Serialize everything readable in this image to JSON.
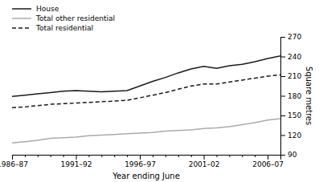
{
  "chart_data": {
    "type": "line",
    "xlabel": "Year ending June",
    "ylabel": "Square metres",
    "categories": [
      "1986–87",
      null,
      null,
      null,
      null,
      "1991–92",
      null,
      null,
      null,
      null,
      "1996–97",
      null,
      null,
      null,
      null,
      "2001–02",
      null,
      null,
      null,
      null,
      "2006–07",
      null
    ],
    "ylim": [
      90,
      270
    ],
    "yticks": [
      90,
      120,
      150,
      180,
      210,
      240,
      270
    ],
    "grid": false,
    "legend": "upper left",
    "series": [
      {
        "name": "House",
        "color": "#1a1a1a",
        "line_style": "solid",
        "values": [
          179,
          181,
          183,
          185,
          187,
          188,
          187,
          186,
          187,
          188,
          195,
          202,
          208,
          215,
          221,
          225,
          222,
          226,
          228,
          232,
          237,
          241
        ]
      },
      {
        "name": "Total other residential",
        "color": "#aaaaaa",
        "line_style": "solid",
        "values": [
          108,
          110,
          112,
          115,
          116,
          117,
          119,
          120,
          121,
          122,
          123,
          124,
          126,
          127,
          128,
          130,
          131,
          133,
          136,
          139,
          143,
          145
        ]
      },
      {
        "name": "Total residential",
        "color": "#1a1a1a",
        "line_style": "dashed",
        "values": [
          162,
          163,
          165,
          167,
          168,
          169,
          170,
          171,
          172,
          173,
          177,
          181,
          185,
          190,
          195,
          198,
          198,
          201,
          204,
          207,
          210,
          212
        ]
      }
    ]
  }
}
